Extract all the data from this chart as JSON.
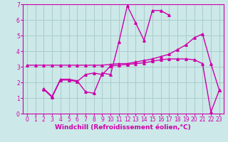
{
  "background_color": "#cce8e8",
  "grid_color": "#aacccc",
  "line_color": "#cc00aa",
  "marker": "^",
  "marker_size": 2.5,
  "line_width": 1.0,
  "xlabel": "Windchill (Refroidissement éolien,°C)",
  "xlabel_fontsize": 6.5,
  "tick_fontsize": 5.5,
  "xlim": [
    -0.5,
    23.5
  ],
  "ylim": [
    0,
    7
  ],
  "xticks": [
    0,
    1,
    2,
    3,
    4,
    5,
    6,
    7,
    8,
    9,
    10,
    11,
    12,
    13,
    14,
    15,
    16,
    17,
    18,
    19,
    20,
    21,
    22,
    23
  ],
  "yticks": [
    0,
    1,
    2,
    3,
    4,
    5,
    6,
    7
  ],
  "series": [
    {
      "x": [
        0,
        1,
        2,
        3,
        4,
        5,
        6,
        7,
        8,
        9,
        10,
        11,
        12,
        13,
        14,
        15,
        16,
        17,
        18,
        19,
        20,
        21,
        22,
        23
      ],
      "y": [
        3.1,
        3.1,
        3.1,
        3.1,
        3.1,
        3.1,
        3.1,
        3.1,
        3.1,
        3.1,
        3.15,
        3.2,
        3.2,
        3.3,
        3.4,
        3.5,
        3.65,
        3.8,
        4.1,
        4.4,
        4.85,
        5.1,
        3.2,
        1.5
      ]
    },
    {
      "x": [
        2,
        3,
        4,
        5,
        6,
        7,
        8,
        9,
        10,
        11,
        12,
        13,
        14,
        15,
        16,
        17
      ],
      "y": [
        1.6,
        1.1,
        2.2,
        2.2,
        2.1,
        1.4,
        1.3,
        2.6,
        2.5,
        4.6,
        6.9,
        5.8,
        4.7,
        6.6,
        6.6,
        6.3
      ]
    },
    {
      "x": [
        2,
        3,
        4,
        5,
        6,
        7,
        8,
        9,
        10,
        11,
        12,
        13,
        14,
        15,
        16,
        17,
        18,
        19,
        20,
        21,
        22,
        23
      ],
      "y": [
        1.55,
        1.05,
        2.15,
        2.15,
        2.05,
        2.5,
        2.6,
        2.5,
        3.05,
        3.1,
        3.15,
        3.2,
        3.25,
        3.35,
        3.45,
        3.5,
        3.5,
        3.5,
        3.45,
        3.2,
        0.1,
        1.5
      ]
    }
  ]
}
